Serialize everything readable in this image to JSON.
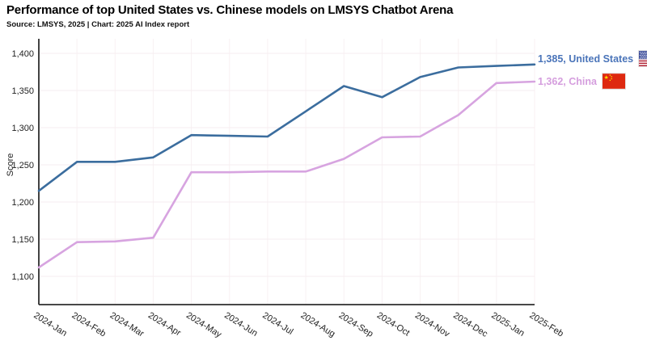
{
  "header": {
    "title": "Performance of top United States vs. Chinese models on LMSYS Chatbot Arena",
    "source": "Source: LMSYS, 2025 | Chart: 2025 AI Index report"
  },
  "chart_data": {
    "type": "line",
    "categories": [
      "2024-Jan",
      "2024-Feb",
      "2024-Mar",
      "2024-Apr",
      "2024-May",
      "2024-Jun",
      "2024-Jul",
      "2024-Aug",
      "2024-Sep",
      "2024-Oct",
      "2024-Nov",
      "2024-Dec",
      "2025-Jan",
      "2025-Feb"
    ],
    "series": [
      {
        "name": "United States",
        "color": "#3b6d9e",
        "label_color": "#4a74b9",
        "end_label": "1,385, United States",
        "flag_icon": "us-flag-icon",
        "values": [
          1215,
          1254,
          1254,
          1260,
          1290,
          1289,
          1288,
          1322,
          1356,
          1341,
          1368,
          1381,
          1383,
          1385
        ]
      },
      {
        "name": "China",
        "color": "#d7a4e0",
        "label_color": "#d59ede",
        "end_label": "1,362, China",
        "flag_icon": "china-flag-icon",
        "values": [
          1112,
          1146,
          1147,
          1152,
          1240,
          1240,
          1241,
          1241,
          1258,
          1287,
          1288,
          1317,
          1360,
          1362
        ]
      }
    ],
    "title": "Performance of top United States vs. Chinese models on LMSYS Chatbot Arena",
    "xlabel": "",
    "ylabel": "Score",
    "ylim": [
      1100,
      1400
    ],
    "yticks": [
      1100,
      1150,
      1200,
      1250,
      1300,
      1350,
      1400
    ],
    "grid": true,
    "legend_position": "right-of-line-ends"
  }
}
